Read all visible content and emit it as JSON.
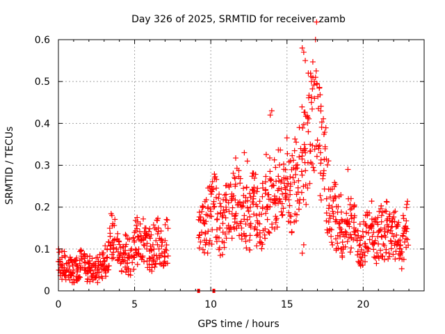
{
  "chart_data": {
    "type": "scatter",
    "title": "Day 326 of 2025, SRMTID for receiver zamb",
    "xlabel": "GPS time / hours",
    "ylabel": "SRMTID / TECUs",
    "xlim": [
      0,
      24
    ],
    "ylim": [
      0,
      0.6
    ],
    "xticks": [
      0,
      5,
      10,
      15,
      20
    ],
    "xtick_labels": [
      "0",
      "5",
      "10",
      "15",
      "20"
    ],
    "yticks": [
      0,
      0.1,
      0.2,
      0.3,
      0.4,
      0.5,
      0.6
    ],
    "ytick_labels": [
      "0",
      "0.1",
      "0.2",
      "0.3",
      "0.4",
      "0.5",
      "0.6"
    ],
    "grid": true,
    "marker": "+",
    "color": "#ff0000",
    "series": [
      {
        "name": "SRMTID",
        "x": [
          0.0,
          0.2,
          0.4,
          0.6,
          0.8,
          1.0,
          1.2,
          1.4,
          1.6,
          1.8,
          2.0,
          2.2,
          2.4,
          2.6,
          2.8,
          3.0,
          3.2,
          3.4,
          3.6,
          3.8,
          4.0,
          4.2,
          4.4,
          4.6,
          4.8,
          5.0,
          5.2,
          5.4,
          5.6,
          5.8,
          6.0,
          6.2,
          6.4,
          6.6,
          6.8,
          7.0,
          9.2,
          9.4,
          9.6,
          9.8,
          10.0,
          10.2,
          10.4,
          10.6,
          10.8,
          11.0,
          11.2,
          11.4,
          11.6,
          11.8,
          12.0,
          12.2,
          12.4,
          12.6,
          12.8,
          13.0,
          13.2,
          13.4,
          13.6,
          13.8,
          14.0,
          14.2,
          14.4,
          14.6,
          14.8,
          15.0,
          15.2,
          15.4,
          15.6,
          15.8,
          16.0,
          16.2,
          16.4,
          16.6,
          16.8,
          17.0,
          17.2,
          17.4,
          17.6,
          17.8,
          18.0,
          18.2,
          18.4,
          18.6,
          18.8,
          19.0,
          19.2,
          19.4,
          19.6,
          19.8,
          20.0,
          20.2,
          20.4,
          20.6,
          20.8,
          21.0,
          21.2,
          21.4,
          21.6,
          21.8,
          22.0,
          22.2,
          22.4,
          22.6,
          22.8
        ],
        "y": [
          0.07,
          0.06,
          0.055,
          0.05,
          0.045,
          0.05,
          0.06,
          0.065,
          0.055,
          0.05,
          0.055,
          0.06,
          0.05,
          0.055,
          0.06,
          0.07,
          0.1,
          0.13,
          0.12,
          0.1,
          0.085,
          0.08,
          0.09,
          0.08,
          0.1,
          0.12,
          0.13,
          0.12,
          0.11,
          0.1,
          0.095,
          0.11,
          0.12,
          0.1,
          0.09,
          0.12,
          0.17,
          0.14,
          0.16,
          0.18,
          0.19,
          0.2,
          0.17,
          0.15,
          0.18,
          0.2,
          0.19,
          0.22,
          0.25,
          0.21,
          0.2,
          0.18,
          0.17,
          0.2,
          0.22,
          0.18,
          0.16,
          0.2,
          0.24,
          0.23,
          0.25,
          0.22,
          0.24,
          0.26,
          0.27,
          0.25,
          0.23,
          0.27,
          0.3,
          0.32,
          0.33,
          0.34,
          0.38,
          0.45,
          0.5,
          0.36,
          0.33,
          0.28,
          0.22,
          0.18,
          0.19,
          0.17,
          0.16,
          0.14,
          0.13,
          0.16,
          0.18,
          0.15,
          0.12,
          0.11,
          0.13,
          0.14,
          0.15,
          0.13,
          0.12,
          0.14,
          0.13,
          0.15,
          0.14,
          0.12,
          0.13,
          0.11,
          0.1,
          0.13,
          0.15
        ]
      }
    ],
    "annotations": {
      "outlier_points": {
        "x": [
          16.0,
          16.1,
          16.2,
          16.4,
          16.6,
          14.0,
          13.9,
          12.2,
          12.4,
          16.0,
          16.1,
          19.0
        ],
        "y": [
          0.58,
          0.57,
          0.55,
          0.52,
          0.5,
          0.43,
          0.42,
          0.33,
          0.31,
          0.09,
          0.11,
          0.29
        ]
      },
      "gap_markers_x": [
        9.2,
        10.2
      ],
      "gap_markers_y": [
        0,
        0
      ]
    }
  }
}
